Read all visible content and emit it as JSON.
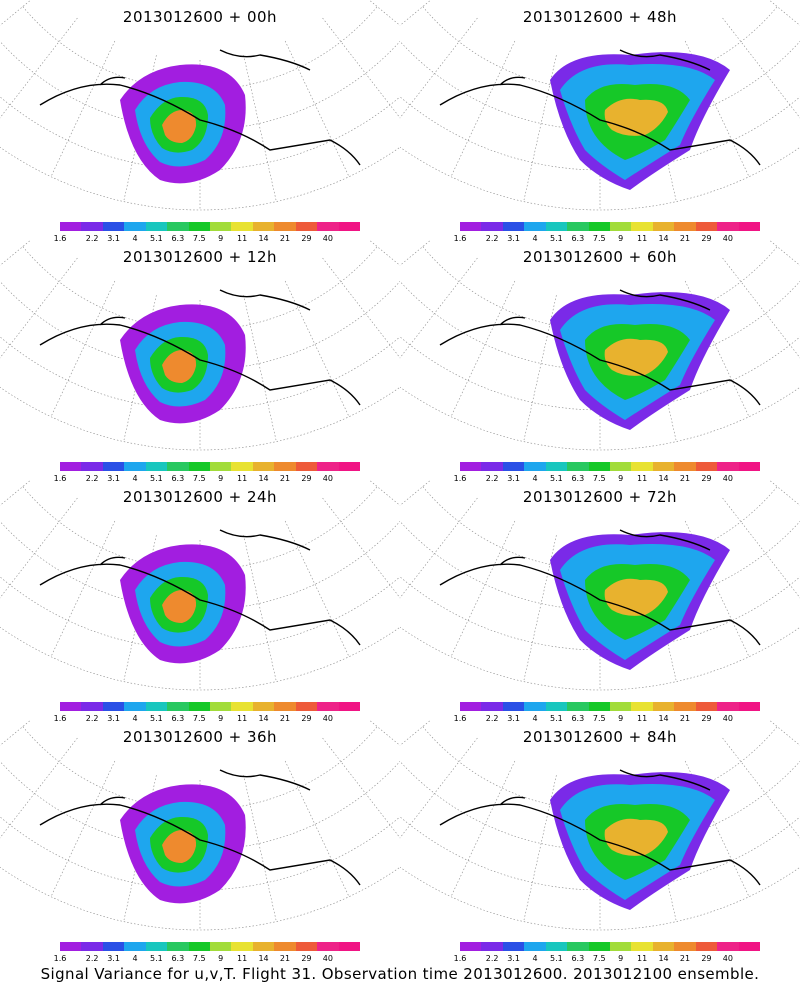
{
  "panels": [
    {
      "title": "2013012600  +  00h"
    },
    {
      "title": "2013012600  +  48h"
    },
    {
      "title": "2013012600  +  12h"
    },
    {
      "title": "2013012600  +  60h"
    },
    {
      "title": "2013012600  +  24h"
    },
    {
      "title": "2013012600  +  72h"
    },
    {
      "title": "2013012600  +  36h"
    },
    {
      "title": "2013012600  +  84h"
    }
  ],
  "colorbar": {
    "labels": [
      "1.6",
      "2.2",
      "3.1",
      "4",
      "5.1",
      "6.3",
      "7.5",
      "9",
      "11",
      "14",
      "21",
      "29",
      "40"
    ],
    "colors": [
      "#a21ee0",
      "#7a2ae8",
      "#2a50e6",
      "#1ea6ee",
      "#18c6be",
      "#28c860",
      "#16c828",
      "#a2dc3a",
      "#e8e232",
      "#e8b22e",
      "#ee8a2e",
      "#ee5a3a",
      "#ee2288",
      "#f01484"
    ]
  },
  "footer": "Signal Variance for u,v,T. Flight 31. Observation time 2013012600. 2013012100 ensemble."
}
